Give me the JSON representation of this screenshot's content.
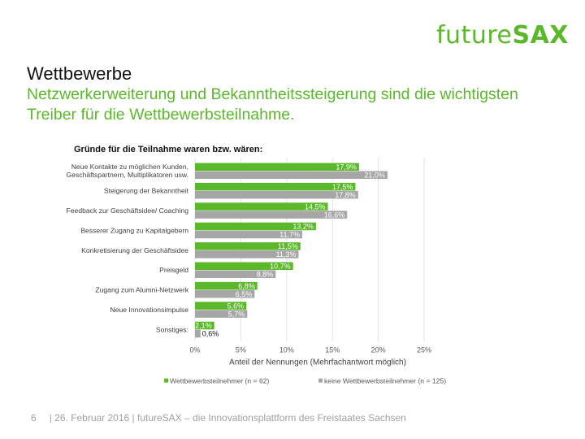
{
  "logo": {
    "light": "future",
    "bold": "SAX"
  },
  "title": "Wettbewerbe",
  "subtitle": "Netzwerkerweiterung und Bekanntheitssteigerung sind die wichtigsten Treiber für die Wettbewerbsteilnahme.",
  "footer": {
    "page": "6",
    "text": "| 26. Februar 2016 | futureSAX – die Innovationsplattform  des Freistaates Sachsen"
  },
  "colors": {
    "green": "#5bb82a",
    "gray": "#a6a6a6"
  },
  "chart_data": {
    "type": "bar",
    "orientation": "horizontal",
    "title": "Gründe für die Teilnahme waren bzw. wären:",
    "xlabel": "Anteil der Nennungen  (Mehrfachantwort möglich)",
    "ylabel": "",
    "xlim": [
      0,
      25
    ],
    "xticks": [
      "0%",
      "5%",
      "10%",
      "15%",
      "20%",
      "25%"
    ],
    "xtick_values": [
      0,
      5,
      10,
      15,
      20,
      25
    ],
    "grid": true,
    "legend": "bottom",
    "categories": [
      [
        "Neue Kontakte zu möglichen Kunden,",
        "Geschäftspartnern, Multiplikatoren usw."
      ],
      [
        "Steigerung der Bekanntheit"
      ],
      [
        "Feedback zur Geschäftsidee/ Coaching"
      ],
      [
        "Besserer Zugang zu Kapitalgebern"
      ],
      [
        "Konkretisierung der Geschäftsidee"
      ],
      [
        "Preisgeld"
      ],
      [
        "Zugang zum Alumni-Netzwerk"
      ],
      [
        "Neue Innovationsimpulse"
      ],
      [
        "Sonstiges:"
      ]
    ],
    "series": [
      {
        "name": "Wettbewerbsteilnehmer (n = 62)",
        "color": "#5bb82a",
        "values": [
          17.9,
          17.5,
          14.5,
          13.2,
          11.5,
          10.7,
          6.8,
          5.6,
          2.1
        ],
        "labels": [
          "17,9%",
          "17,5%",
          "14,5%",
          "13,2%",
          "11,5%",
          "10,7%",
          "6,8%",
          "5,6%",
          "2,1%"
        ]
      },
      {
        "name": "keine Wettbewerbsteilnehmer (n = 125)",
        "color": "#a6a6a6",
        "values": [
          21.0,
          17.8,
          16.6,
          11.7,
          11.3,
          8.8,
          6.5,
          5.7,
          0.6
        ],
        "labels": [
          "21,0%",
          "17,8%",
          "16,6%",
          "11,7%",
          "11,3%",
          "8,8%",
          "6,5%",
          "5,7%",
          "0,6%"
        ]
      }
    ]
  }
}
